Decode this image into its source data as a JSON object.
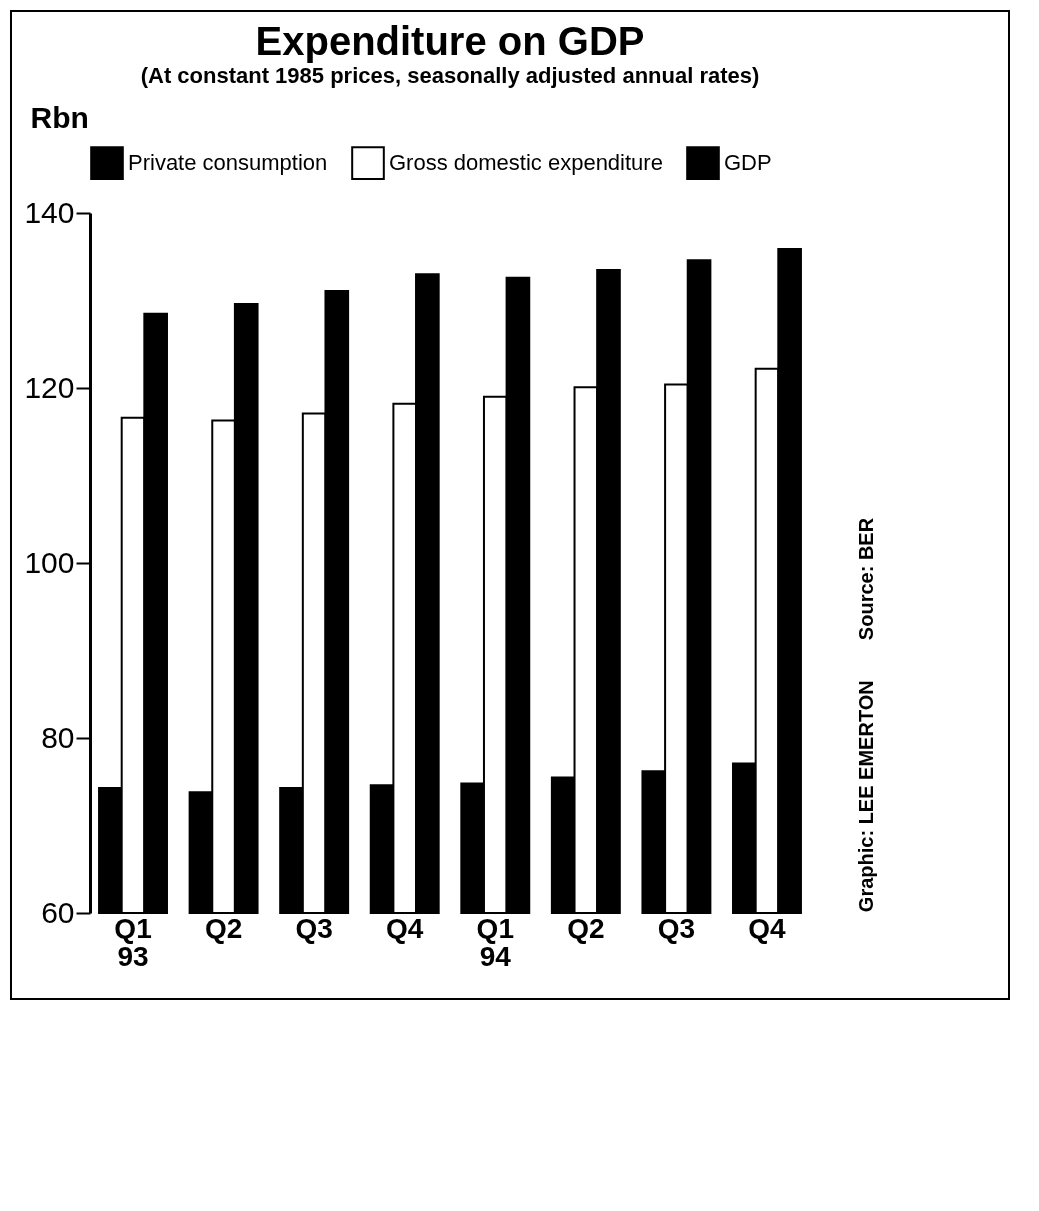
{
  "chart_data": {
    "type": "bar",
    "title": "Expenditure on GDP",
    "subtitle": "(At constant 1985 prices, seasonally adjusted annual rates)",
    "ylabel": "Rbn",
    "categories": [
      "Q1 93",
      "Q2",
      "Q3",
      "Q4",
      "Q1 94",
      "Q2",
      "Q3",
      "Q4"
    ],
    "series": [
      {
        "name": "Private consumption",
        "color": "#000000",
        "values": [
          74.3,
          73.8,
          74.3,
          74.6,
          74.8,
          75.5,
          76.2,
          77.1
        ]
      },
      {
        "name": "Gross domestic expenditure",
        "color": "#ffffff",
        "values": [
          116.6,
          116.3,
          117.1,
          118.2,
          119.0,
          120.1,
          120.4,
          122.2
        ]
      },
      {
        "name": "GDP",
        "color": "#000000",
        "values": [
          128.5,
          129.6,
          131.1,
          133.0,
          132.6,
          133.5,
          134.6,
          135.9
        ]
      }
    ],
    "ylim": [
      60,
      140
    ],
    "yticks": [
      60,
      80,
      100,
      120,
      140
    ],
    "grid": false,
    "legend": "top",
    "annotations": [
      "Source: BER",
      "Graphic: LEE EMERTON"
    ]
  }
}
